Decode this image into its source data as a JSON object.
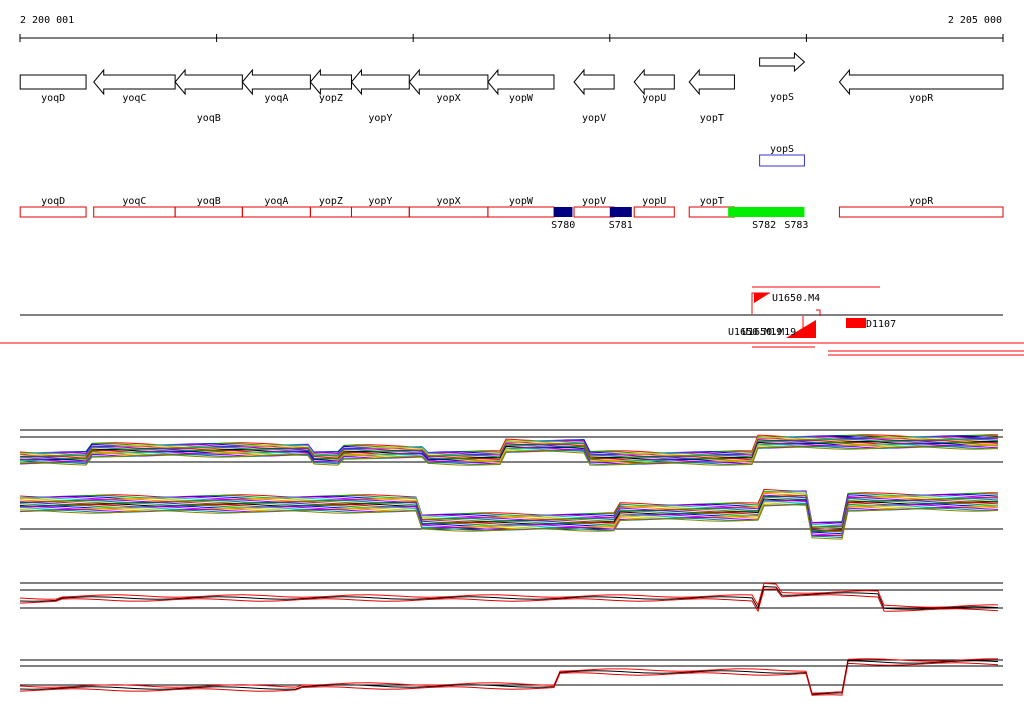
{
  "ruler": {
    "start_label": "2 200 001",
    "end_label": "2 205 000"
  },
  "genes": [
    {
      "name": "yoqD",
      "strand": "-",
      "bp": [
        1,
        336
      ]
    },
    {
      "name": "yoqC",
      "strand": "-",
      "bp": [
        375,
        789
      ]
    },
    {
      "name": "yoqB",
      "strand": "-",
      "bp": [
        789,
        1131
      ]
    },
    {
      "name": "yoqA",
      "strand": "-",
      "bp": [
        1131,
        1477
      ]
    },
    {
      "name": "yopZ",
      "strand": "-",
      "bp": [
        1477,
        1686
      ]
    },
    {
      "name": "yopY",
      "strand": "-",
      "bp": [
        1686,
        1980
      ]
    },
    {
      "name": "yopX",
      "strand": "-",
      "bp": [
        1980,
        2380
      ]
    },
    {
      "name": "yopW",
      "strand": "-",
      "bp": [
        2380,
        2716
      ]
    },
    {
      "name": "yopV",
      "strand": "-",
      "bp": [
        2818,
        3022
      ]
    },
    {
      "name": "yopU",
      "strand": "-",
      "bp": [
        3124,
        3328
      ]
    },
    {
      "name": "yopT",
      "strand": "-",
      "bp": [
        3404,
        3634
      ]
    },
    {
      "name": "yopS",
      "strand": "+",
      "bp": [
        3762,
        3990
      ]
    },
    {
      "name": "yopR",
      "strand": "-",
      "bp": [
        4168,
        5000
      ]
    }
  ],
  "operon_track": {
    "genes": [
      "yoqD",
      "yoqC",
      "yoqB",
      "yoqA",
      "yopZ",
      "yopY",
      "yopX",
      "yopW",
      "yopV",
      "yopU",
      "yopT",
      "yopR"
    ],
    "highlight_gene": "yopS",
    "highlight_color": "#3333cc"
  },
  "segments": [
    {
      "name": "S780",
      "bp": [
        2716,
        2810
      ],
      "color": "#000080"
    },
    {
      "name": "S781",
      "bp": [
        3000,
        3112
      ],
      "color": "#000080"
    },
    {
      "name": "S782",
      "bp": [
        3602,
        3990
      ],
      "color": "#00ee00"
    },
    {
      "name": "S783",
      "bp": [
        3602,
        3990
      ],
      "color": "#00ee00"
    }
  ],
  "features": {
    "labels": [
      "U1650.M4",
      "U1650.M19",
      "D1107"
    ],
    "overlap_label": "U1650.M19"
  },
  "colors": {
    "outline": "#000000",
    "gene_red": "#dd0000",
    "feature_red": "#ff0000",
    "line_black": "#000000"
  }
}
